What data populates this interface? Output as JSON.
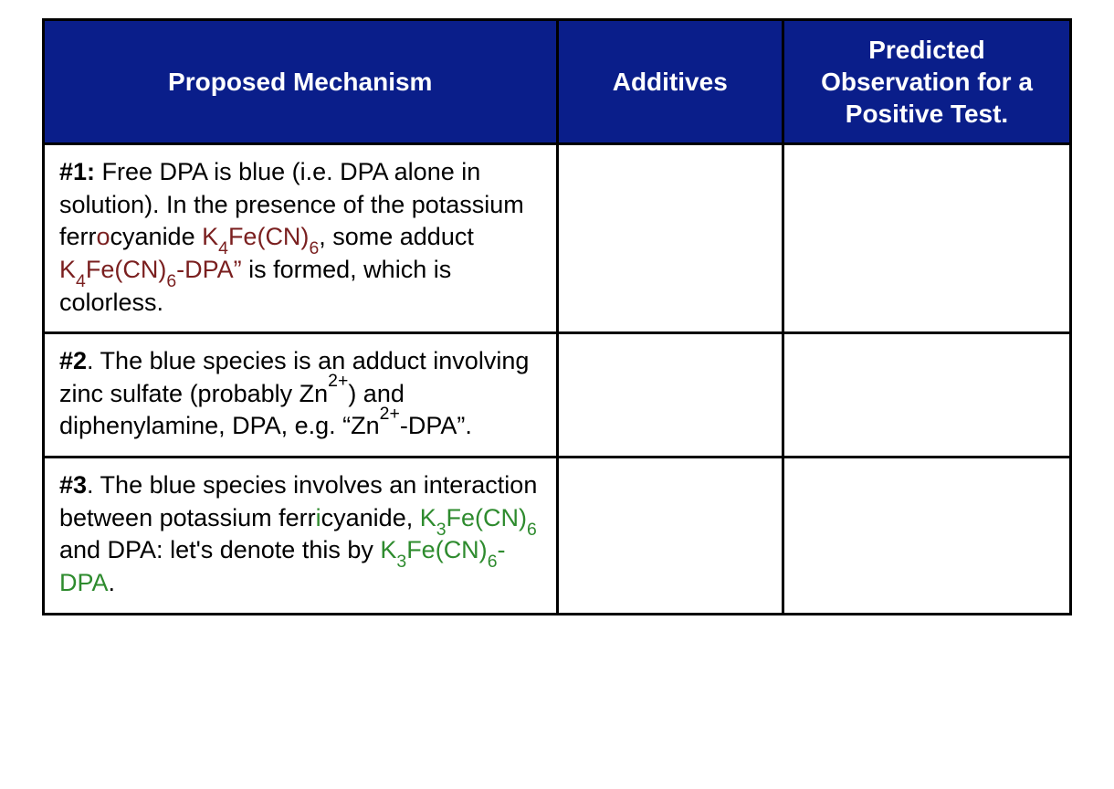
{
  "table": {
    "header_bg": "#0a1e8a",
    "header_fg": "#ffffff",
    "border_color": "#000000",
    "ferro_color": "#7a1f1f",
    "ferri_color": "#2e8b2e",
    "columns": [
      {
        "label": "Proposed Mechanism",
        "width_pct": 50
      },
      {
        "label": "Additives",
        "width_pct": 22
      },
      {
        "label": "Predicted Observation for a Positive Test.",
        "width_pct": 28
      }
    ],
    "col0_header": "Proposed Mechanism",
    "col1_header": "Additives",
    "col2_header": "Predicted Observation for a Positive Test.",
    "row1_label": "#1:",
    "row1_pre1": " Free DPA is blue (i.e. DPA alone in solution).  In the presence of the potassium ferr",
    "row1_ferro_o": "o",
    "row1_mid1": "cyanide ",
    "row1_k4a_K": "K",
    "row1_k4a_4": "4",
    "row1_k4a_Fe": "Fe(CN)",
    "row1_k4a_6": "6",
    "row1_mid2": ", some adduct ",
    "row1_k4b_K": "K",
    "row1_k4b_4": "4",
    "row1_k4b_Fe": "Fe(CN)",
    "row1_k4b_6": "6",
    "row1_k4b_tail": "-DPA”",
    "row1_post": "  is formed, which is colorless.",
    "row2_label": "#2",
    "row2_pre": ".  The blue species is an adduct involving zinc sulfate (probably Zn",
    "row2_zn_sup": "2+",
    "row2_mid": ") and diphenylamine, DPA, e.g. “Zn",
    "row2_zn2_sup": "2+",
    "row2_post": "-DPA”.",
    "row3_label": "#3",
    "row3_pre1": ".  The blue species involves an interaction between potassium ferr",
    "row3_ferri_i": "i",
    "row3_mid1": "cyanide, ",
    "row3_k3a_K": "K",
    "row3_k3a_3": "3",
    "row3_k3a_Fe": "Fe(CN)",
    "row3_k3a_6": "6",
    "row3_mid2": " and DPA: let's denote this by ",
    "row3_k3b_K": "K",
    "row3_k3b_3": "3",
    "row3_k3b_Fe": "Fe(CN)",
    "row3_k3b_6": "6",
    "row3_k3b_tail": "-DPA",
    "row3_post": "."
  }
}
